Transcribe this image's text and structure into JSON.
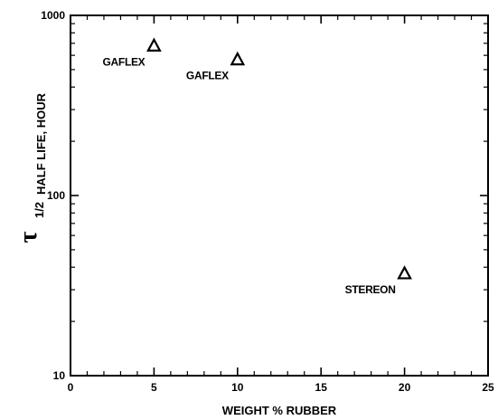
{
  "chart_data": {
    "type": "scatter",
    "x_label": "WEIGHT % RUBBER",
    "y_label_symbol": "τ",
    "y_label_subscript": "1/2",
    "y_label": "HALF LIFE, HOUR",
    "x_range": [
      0,
      25
    ],
    "y_range": [
      10,
      1000
    ],
    "y_scale": "log",
    "x_ticks": [
      "0",
      "5",
      "10",
      "15",
      "20",
      "25"
    ],
    "y_ticks": [
      "10",
      "100",
      "1000"
    ],
    "grid": false,
    "marker": "open-triangle",
    "points": [
      {
        "x": 5,
        "y": 680,
        "label": "GAFLEX"
      },
      {
        "x": 10,
        "y": 570,
        "label": "GAFLEX"
      },
      {
        "x": 20,
        "y": 37,
        "label": "STEREON"
      }
    ]
  }
}
